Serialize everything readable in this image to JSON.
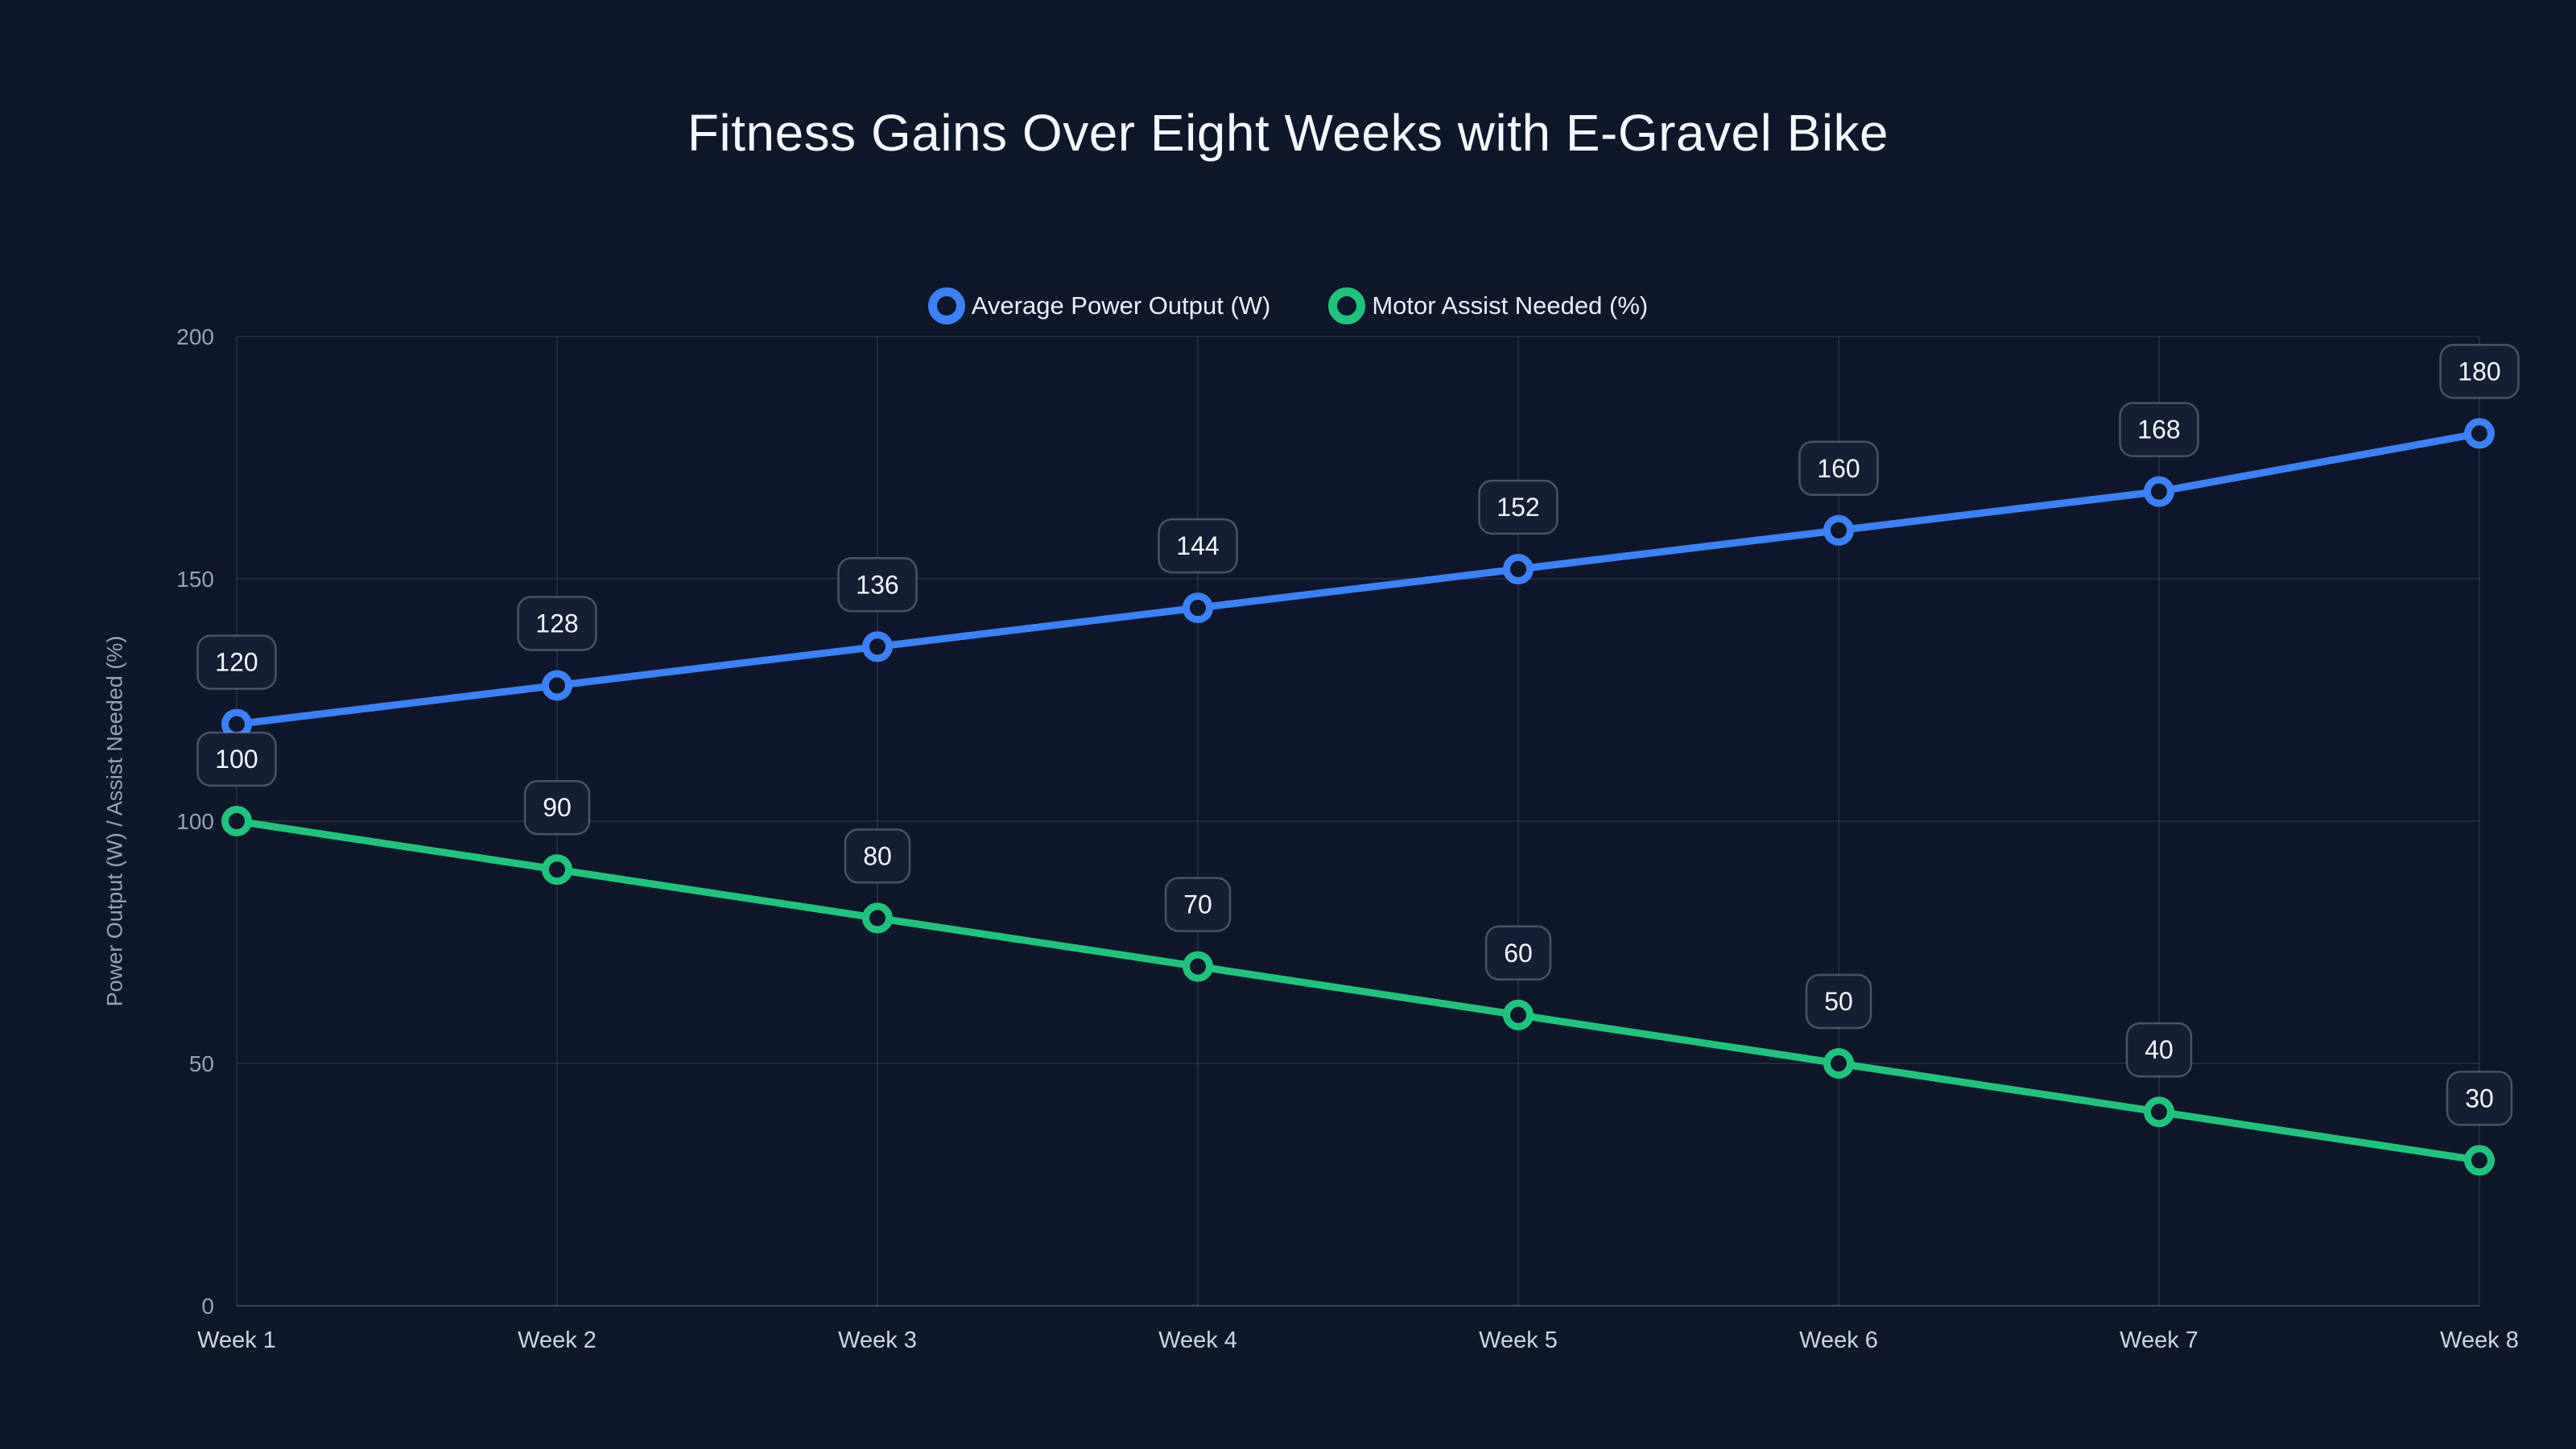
{
  "page": {
    "background_color": "#0f172a",
    "title_color": "#f5f8fc",
    "tick_color": "#94a3b8",
    "category_label_color": "#cbd5e1",
    "gridline_color": "rgba(148,163,184,0.14)",
    "data_label_text_color": "#f4f7fb",
    "data_label_box_fill": "#141e35",
    "data_label_box_border": "rgba(148,163,184,0.42)"
  },
  "chart_data": {
    "type": "line",
    "title": "Fitness Gains Over Eight Weeks with E-Gravel Bike",
    "xlabel": "",
    "ylabel": "Power Output (W) / Assist Needed (%)",
    "categories": [
      "Week 1",
      "Week 2",
      "Week 3",
      "Week 4",
      "Week 5",
      "Week 6",
      "Week 7",
      "Week 8"
    ],
    "series": [
      {
        "name": "Average Power Output (W)",
        "color": "#3b82f6",
        "values": [
          120,
          128,
          136,
          144,
          152,
          160,
          168,
          180
        ]
      },
      {
        "name": "Motor Assist Needed (%)",
        "color": "#1ec47d",
        "values": [
          100,
          90,
          80,
          70,
          60,
          50,
          40,
          30
        ]
      }
    ],
    "ylim": [
      0,
      200
    ],
    "yticks": [
      0,
      50,
      100,
      150,
      200
    ],
    "grid": true,
    "legend_position": "top-center",
    "point_style": "open-circle",
    "data_labels": true
  }
}
